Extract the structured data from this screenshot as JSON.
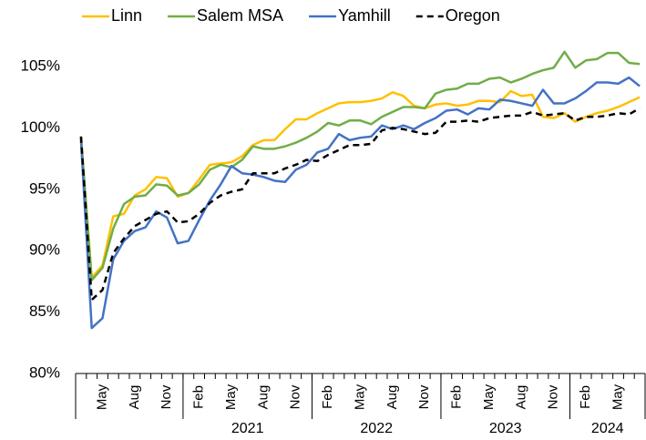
{
  "chart_data": {
    "type": "line",
    "categories": [
      null,
      null,
      "May",
      null,
      null,
      "Aug",
      null,
      null,
      "Nov",
      null,
      null,
      "Feb",
      null,
      null,
      "May",
      null,
      null,
      "Aug",
      null,
      null,
      "Nov",
      null,
      null,
      "Feb",
      null,
      null,
      "May",
      null,
      null,
      "Aug",
      null,
      null,
      "Nov",
      null,
      null,
      "Feb",
      null,
      null,
      "May",
      null,
      null,
      "Aug",
      null,
      null,
      "Nov",
      null,
      null,
      "Feb",
      null,
      null,
      "May",
      null,
      null
    ],
    "year_groups": [
      {
        "label": null,
        "size": 10
      },
      {
        "label": "2021",
        "size": 12
      },
      {
        "label": "2022",
        "size": 12
      },
      {
        "label": "2023",
        "size": 12
      },
      {
        "label": "2024",
        "size": 7
      }
    ],
    "series": [
      {
        "name": "Linn",
        "color": "#ffc000",
        "dash": false,
        "values": [
          99.3,
          87.8,
          88.8,
          92.8,
          93.0,
          94.5,
          95.0,
          96.0,
          95.9,
          94.4,
          94.7,
          95.8,
          97.0,
          97.1,
          97.2,
          97.7,
          98.6,
          99.0,
          99.0,
          99.9,
          100.7,
          100.7,
          101.2,
          101.6,
          102.0,
          102.1,
          102.1,
          102.2,
          102.4,
          102.9,
          102.6,
          101.8,
          101.6,
          101.9,
          102.0,
          101.8,
          101.9,
          102.2,
          102.2,
          102.1,
          103.0,
          102.6,
          102.7,
          100.9,
          100.8,
          101.2,
          100.5,
          100.9,
          101.2,
          101.4,
          101.7,
          102.1,
          102.5
        ]
      },
      {
        "name": "Salem MSA",
        "color": "#70ad47",
        "dash": false,
        "values": [
          99.2,
          87.6,
          88.6,
          91.8,
          93.8,
          94.4,
          94.5,
          95.4,
          95.3,
          94.5,
          94.7,
          95.4,
          96.6,
          97.0,
          96.8,
          97.4,
          98.5,
          98.3,
          98.3,
          98.5,
          98.8,
          99.2,
          99.7,
          100.4,
          100.2,
          100.6,
          100.6,
          100.3,
          100.9,
          101.3,
          101.7,
          101.7,
          101.6,
          102.8,
          103.1,
          103.2,
          103.6,
          103.6,
          104.0,
          104.1,
          103.7,
          104.0,
          104.4,
          104.7,
          104.9,
          106.2,
          104.9,
          105.5,
          105.6,
          106.1,
          106.1,
          105.3,
          105.2
        ]
      },
      {
        "name": "Yamhill",
        "color": "#4472c4",
        "dash": false,
        "values": [
          99.0,
          83.7,
          84.5,
          89.3,
          90.8,
          91.6,
          91.9,
          93.2,
          92.7,
          90.6,
          90.8,
          92.5,
          94.1,
          95.4,
          96.9,
          96.3,
          96.2,
          96.0,
          95.7,
          95.6,
          96.6,
          97.0,
          98.0,
          98.3,
          99.5,
          99.0,
          99.2,
          99.3,
          100.2,
          99.9,
          100.2,
          99.9,
          100.4,
          100.8,
          101.4,
          101.5,
          101.1,
          101.6,
          101.5,
          102.3,
          102.2,
          102.0,
          101.8,
          103.1,
          102.0,
          102.0,
          102.4,
          103.0,
          103.7,
          103.7,
          103.6,
          104.1,
          103.4
        ]
      },
      {
        "name": "Oregon",
        "color": "#000000",
        "dash": true,
        "values": [
          99.3,
          86.0,
          86.8,
          89.8,
          91.0,
          92.0,
          92.5,
          93.0,
          93.2,
          92.3,
          92.4,
          93.0,
          93.9,
          94.5,
          94.8,
          95.0,
          96.3,
          96.3,
          96.3,
          96.7,
          97.0,
          97.4,
          97.3,
          97.8,
          98.2,
          98.6,
          98.6,
          98.7,
          99.8,
          100.0,
          99.9,
          99.7,
          99.5,
          99.6,
          100.5,
          100.5,
          100.6,
          100.5,
          100.8,
          100.9,
          101.0,
          101.0,
          101.3,
          101.0,
          101.1,
          101.2,
          100.6,
          100.9,
          100.9,
          101.0,
          101.2,
          101.1,
          101.6
        ]
      }
    ],
    "ylim": [
      80,
      107.5
    ],
    "yticks": [
      {
        "value": 80,
        "label": "80%"
      },
      {
        "value": 85,
        "label": "85%"
      },
      {
        "value": 90,
        "label": "90%"
      },
      {
        "value": 95,
        "label": "95%"
      },
      {
        "value": 100,
        "label": "100%"
      },
      {
        "value": 105,
        "label": "105%"
      }
    ],
    "grid": false,
    "legend": "top"
  }
}
